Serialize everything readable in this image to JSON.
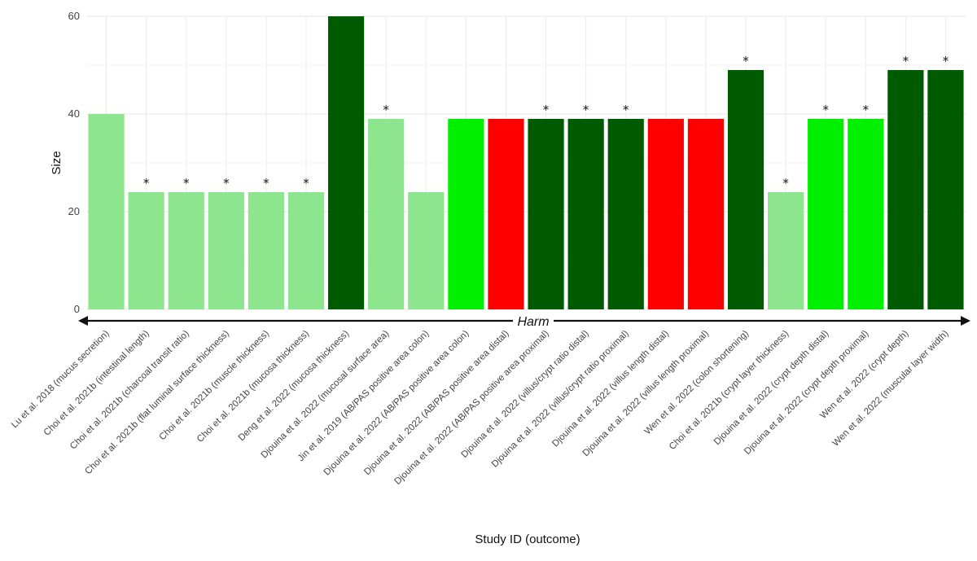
{
  "chart_data": {
    "type": "bar",
    "title": "",
    "xlabel": "Study ID (outcome)",
    "ylabel": "Size",
    "ylim": [
      0,
      60
    ],
    "yticks": [
      0,
      20,
      40,
      60
    ],
    "grid": true,
    "arrow_label": "Harm",
    "categories": [
      "Lu et al. 2018 (mucus secretion)",
      "Choi et al. 2021b (intestinal length)",
      "Choi et al. 2021b  (charcoal transit ratio)",
      "Choi et al. 2021b (flat luminal surface thickness)",
      "Choi et al. 2021b (muscle thickness)",
      "Choi et al. 2021b (mucosa thickness)",
      "Deng et al. 2022 (mucosa thickness)",
      "Djouina et al. 2022  (mucosal surface area)",
      "Jin et al. 2019  (AB/PAS positive area colon)",
      "Djouina et al. 2022   (AB/PAS positive area colon)",
      "Djouina et al. 2022  (AB/PAS positive area distal)",
      "Djouina et al. 2022 (AB/PAS positive area proximal)",
      "Djouina et al. 2022 (villus/crypt ratio distal)",
      "Djouina et al. 2022 (villus/crypt ratio proximal)",
      "Djouina et al. 2022 (villus length distal)",
      "Djouina et al. 2022 (villus length proximal)",
      "Wen et al. 2022 (colon shortening)",
      "Choi et al. 2021b (crypt layer thickness)",
      "Djouina et al. 2022 (crypt depth distal)",
      "Djouina et al. 2022 (crypt depth proximal)",
      "Wen et al. 2022 (crypt depth)",
      "Wen et al. 2022 (muscular layer width)"
    ],
    "values": [
      40,
      24,
      24,
      24,
      24,
      24,
      60,
      39,
      24,
      39,
      39,
      39,
      39,
      39,
      39,
      39,
      49,
      24,
      39,
      39,
      49,
      49
    ],
    "colors": [
      "#8de58d",
      "#8de58d",
      "#8de58d",
      "#8de58d",
      "#8de58d",
      "#8de58d",
      "#005a00",
      "#8de58d",
      "#8de58d",
      "#00f000",
      "#ff0000",
      "#005a00",
      "#005a00",
      "#005a00",
      "#ff0000",
      "#ff0000",
      "#005a00",
      "#8de58d",
      "#00f000",
      "#00f000",
      "#005a00",
      "#005a00"
    ],
    "significant": [
      false,
      true,
      true,
      true,
      true,
      true,
      false,
      true,
      false,
      false,
      false,
      true,
      true,
      true,
      false,
      false,
      true,
      true,
      true,
      true,
      true,
      true
    ],
    "significance_marker": "*"
  }
}
